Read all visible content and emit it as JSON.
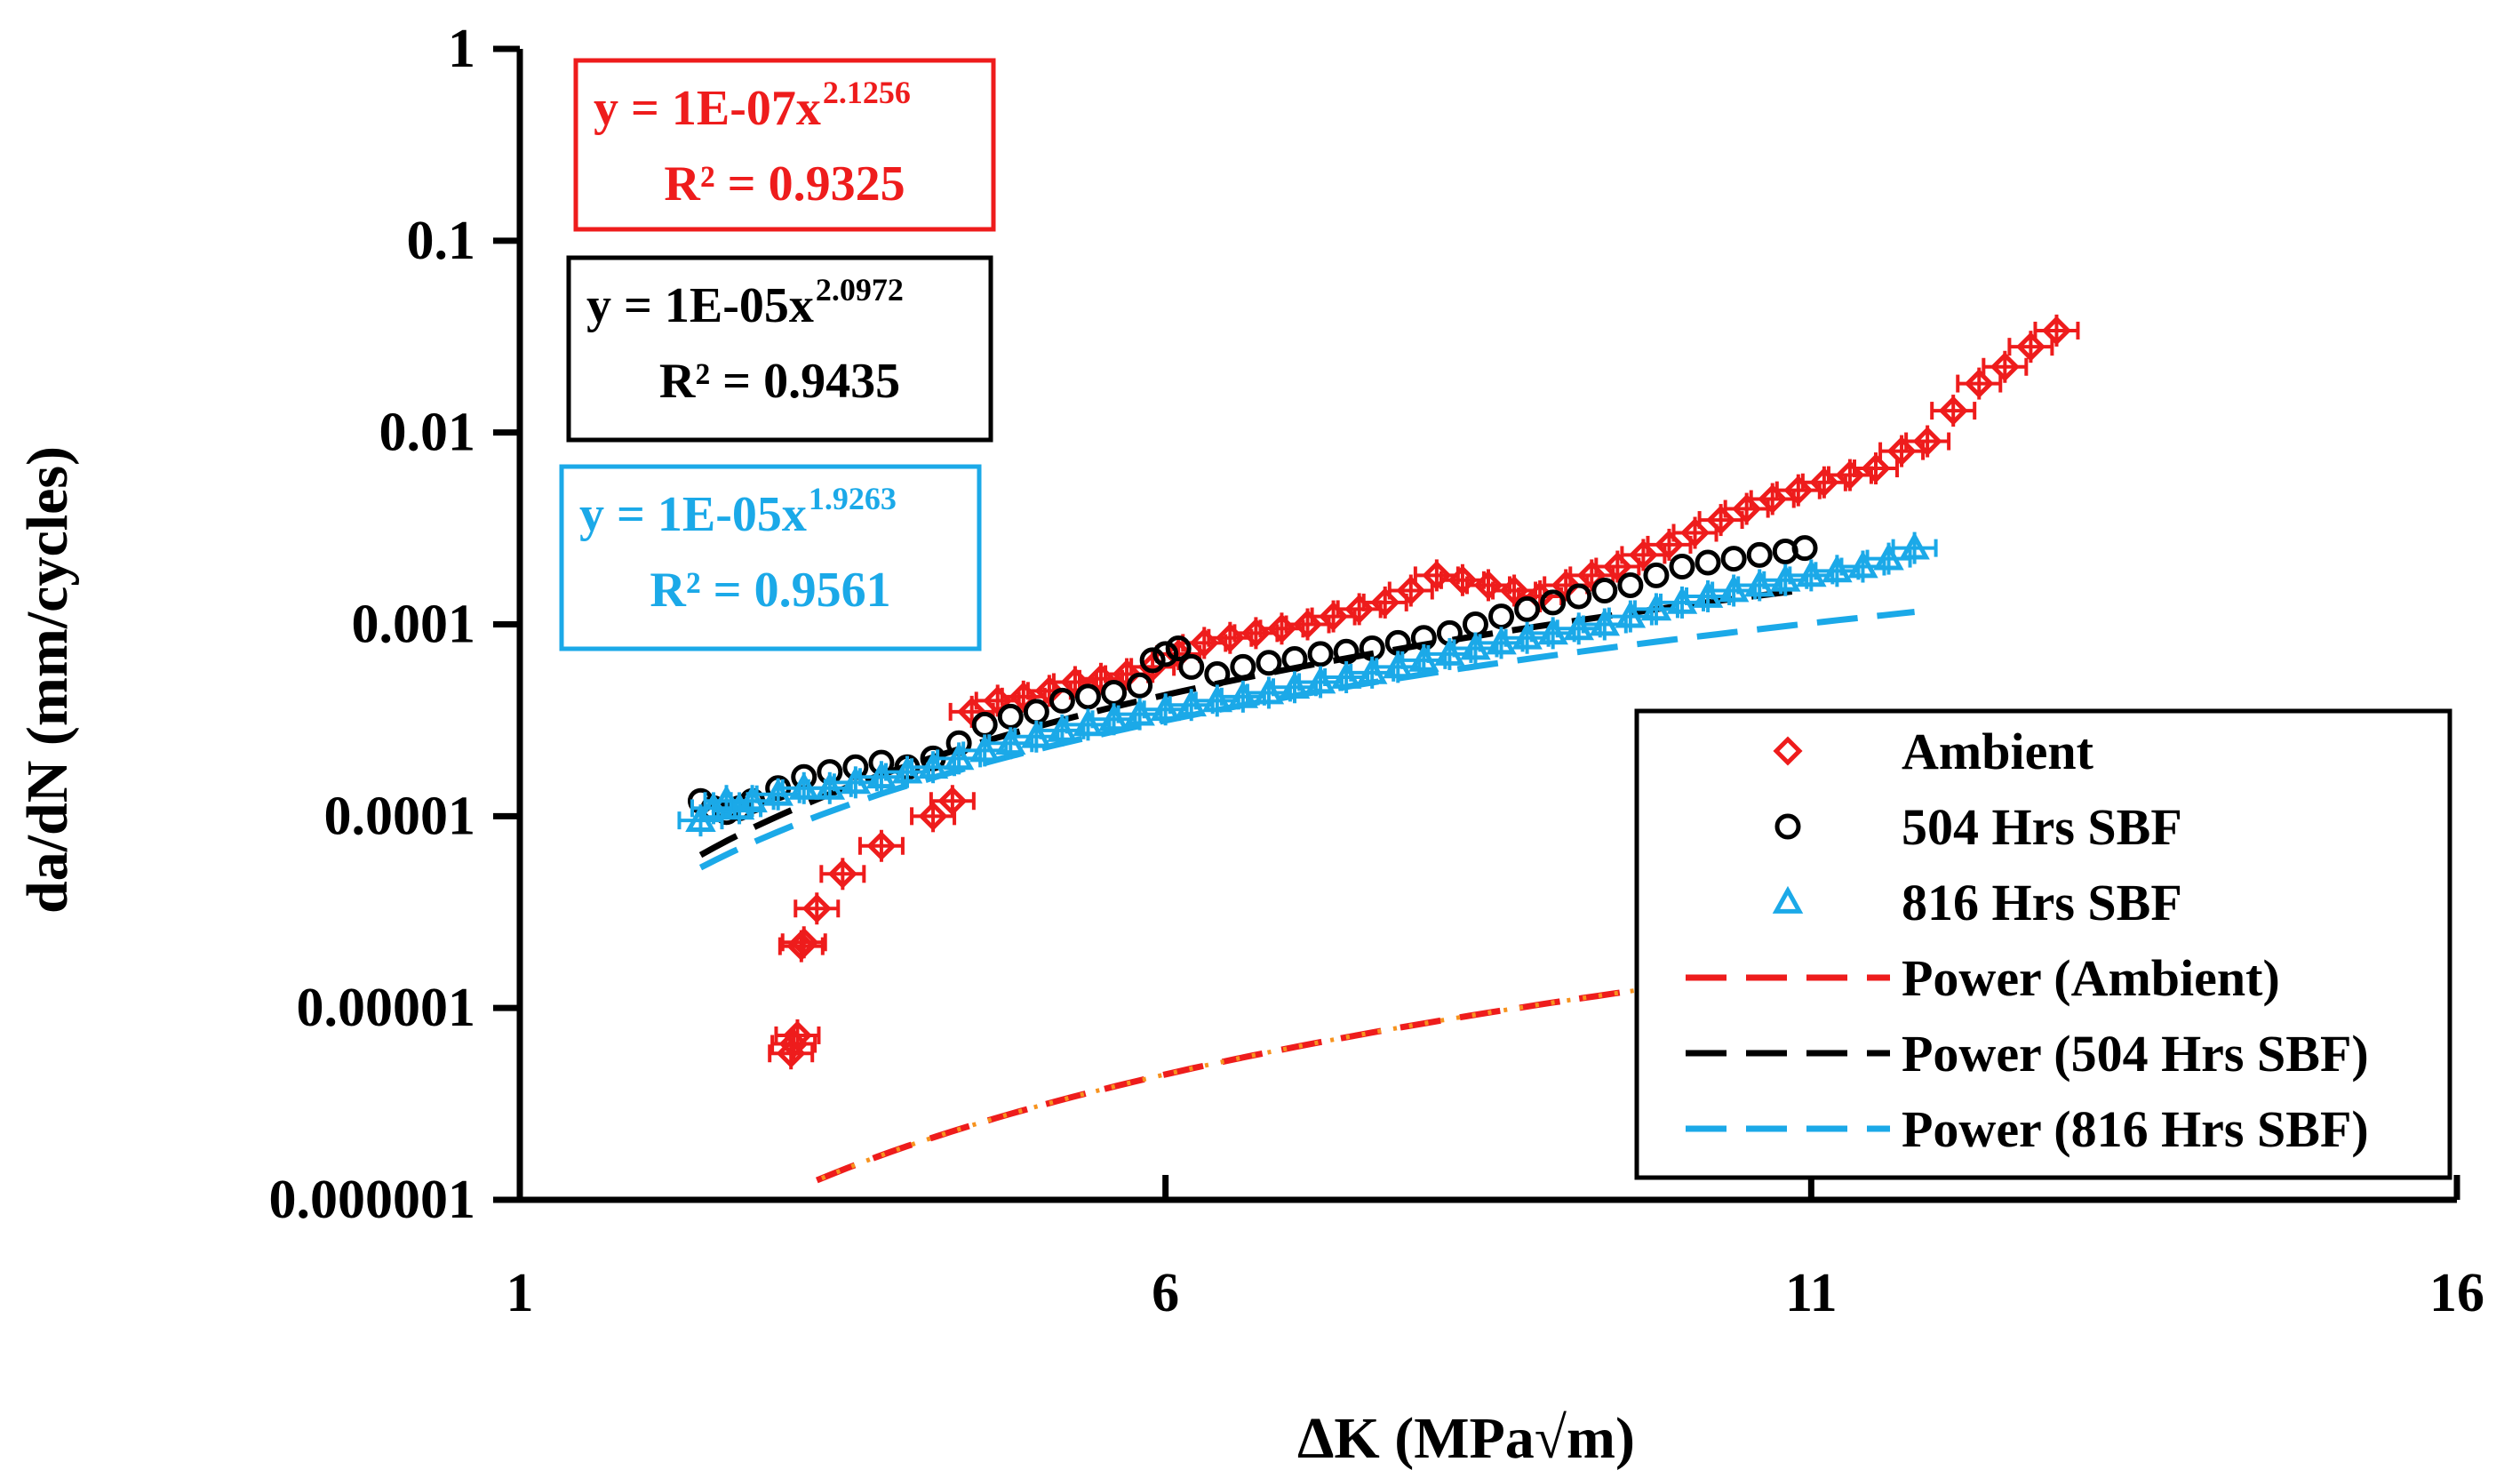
{
  "chart_data": {
    "type": "scatter",
    "xlabel": "ΔK (MPa√m)",
    "ylabel": "da/dN (mm/cycles)",
    "x_range": [
      1,
      16
    ],
    "y_range": [
      1e-06,
      1
    ],
    "y_scale": "log",
    "x_ticks": [
      {
        "value": 1,
        "label": "1"
      },
      {
        "value": 6,
        "label": "6"
      },
      {
        "value": 11,
        "label": "11"
      },
      {
        "value": 16,
        "label": "16"
      }
    ],
    "y_ticks": [
      {
        "value": 1,
        "label": "1"
      },
      {
        "value": 0.1,
        "label": "0.1"
      },
      {
        "value": 0.01,
        "label": "0.01"
      },
      {
        "value": 0.001,
        "label": "0.001"
      },
      {
        "value": 0.0001,
        "label": "0.0001"
      },
      {
        "value": 1e-05,
        "label": "0.00001"
      },
      {
        "value": 1e-06,
        "label": "0.000001"
      }
    ],
    "grid": false,
    "legend_position": "bottom-right",
    "colors": {
      "ambient": "#ee1c1c",
      "sbf504": "#000000",
      "sbf816": "#1ba9e8",
      "orange": "#f7931e"
    },
    "series": [
      {
        "name": "Ambient",
        "marker": "diamond",
        "color": "#ee1c1c",
        "x": [
          3.1,
          3.12,
          3.15,
          3.18,
          3.2,
          3.3,
          3.5,
          3.8,
          4.2,
          4.35,
          4.5,
          4.7,
          4.9,
          5.1,
          5.3,
          5.5,
          5.7,
          5.9,
          6.1,
          6.3,
          6.5,
          6.7,
          6.9,
          7.1,
          7.3,
          7.5,
          7.7,
          7.9,
          8.1,
          8.3,
          8.5,
          8.7,
          8.9,
          9.1,
          9.3,
          9.5,
          9.7,
          9.9,
          10.1,
          10.3,
          10.5,
          10.7,
          10.9,
          11.1,
          11.3,
          11.5,
          11.7,
          11.9,
          12.1,
          12.3,
          12.5,
          12.7,
          12.9
        ],
        "y": [
          5.8e-06,
          6.5e-06,
          7.2e-06,
          2.1e-05,
          2.2e-05,
          3.3e-05,
          5e-05,
          7e-05,
          0.0001,
          0.00012,
          0.00035,
          0.0004,
          0.00042,
          0.00045,
          0.0005,
          0.00052,
          0.00055,
          0.0006,
          0.0007,
          0.0008,
          0.00085,
          0.0009,
          0.00095,
          0.001,
          0.0011,
          0.0012,
          0.0013,
          0.0015,
          0.0018,
          0.0017,
          0.0016,
          0.0015,
          0.0014,
          0.0016,
          0.0018,
          0.002,
          0.0023,
          0.0026,
          0.003,
          0.0035,
          0.004,
          0.0045,
          0.005,
          0.0055,
          0.006,
          0.0065,
          0.008,
          0.009,
          0.013,
          0.018,
          0.022,
          0.028,
          0.034
        ]
      },
      {
        "name": "504 Hrs SBF",
        "marker": "circle",
        "color": "#000000",
        "x": [
          2.4,
          2.5,
          2.6,
          2.7,
          2.8,
          3.0,
          3.2,
          3.4,
          3.6,
          3.8,
          4.0,
          4.2,
          4.4,
          4.6,
          4.8,
          5.0,
          5.2,
          5.4,
          5.6,
          5.8,
          5.9,
          6.0,
          6.1,
          6.2,
          6.4,
          6.6,
          6.8,
          7.0,
          7.2,
          7.4,
          7.6,
          7.8,
          8.0,
          8.2,
          8.4,
          8.6,
          8.8,
          9.0,
          9.2,
          9.4,
          9.6,
          9.8,
          10.0,
          10.2,
          10.4,
          10.6,
          10.8,
          10.95
        ],
        "y": [
          0.00012,
          0.00011,
          0.000105,
          0.00011,
          0.00012,
          0.00014,
          0.00016,
          0.00017,
          0.00018,
          0.00019,
          0.00018,
          0.0002,
          0.00024,
          0.0003,
          0.00033,
          0.00035,
          0.0004,
          0.00042,
          0.00044,
          0.00048,
          0.00065,
          0.0007,
          0.00075,
          0.0006,
          0.00055,
          0.0006,
          0.00063,
          0.00066,
          0.0007,
          0.00072,
          0.00075,
          0.0008,
          0.00085,
          0.0009,
          0.001,
          0.0011,
          0.0012,
          0.0013,
          0.0014,
          0.0015,
          0.0016,
          0.0018,
          0.002,
          0.0021,
          0.0022,
          0.0023,
          0.0024,
          0.0025
        ]
      },
      {
        "name": "816 Hrs SBF",
        "marker": "triangle",
        "color": "#1ba9e8",
        "x": [
          2.4,
          2.5,
          2.6,
          2.7,
          2.8,
          3.0,
          3.2,
          3.4,
          3.6,
          3.8,
          4.0,
          4.2,
          4.4,
          4.6,
          4.8,
          5.0,
          5.2,
          5.4,
          5.6,
          5.8,
          6.0,
          6.2,
          6.4,
          6.6,
          6.8,
          7.0,
          7.2,
          7.4,
          7.6,
          7.8,
          8.0,
          8.2,
          8.4,
          8.6,
          8.8,
          9.0,
          9.2,
          9.4,
          9.6,
          9.8,
          10.0,
          10.2,
          10.4,
          10.6,
          10.8,
          11.0,
          11.2,
          11.4,
          11.6,
          11.8
        ],
        "y": [
          9.5e-05,
          0.00011,
          0.00012,
          0.00011,
          0.00012,
          0.00013,
          0.00014,
          0.00014,
          0.00015,
          0.00016,
          0.00017,
          0.00018,
          0.0002,
          0.00022,
          0.00024,
          0.00026,
          0.00028,
          0.0003,
          0.00032,
          0.00034,
          0.00036,
          0.00038,
          0.0004,
          0.00042,
          0.00044,
          0.00047,
          0.0005,
          0.00053,
          0.00056,
          0.0006,
          0.00065,
          0.0007,
          0.00075,
          0.0008,
          0.00085,
          0.0009,
          0.00095,
          0.001,
          0.0011,
          0.0012,
          0.0013,
          0.0014,
          0.0015,
          0.0016,
          0.0017,
          0.0018,
          0.0019,
          0.002,
          0.0022,
          0.0025
        ]
      }
    ],
    "trendlines": [
      {
        "name": "Power (Ambient)",
        "color": "#ee1c1c",
        "dash": "dashed",
        "coef": 1e-07,
        "exp": 2.1256,
        "x_range": [
          3.3,
          12.6
        ]
      },
      {
        "name": "Power (504 Hrs SBF)",
        "color": "#000000",
        "dash": "dashed",
        "coef": 1e-05,
        "exp": 2.0972,
        "x_range": [
          2.4,
          10.9
        ]
      },
      {
        "name": "Power (816 Hrs SBF)",
        "color": "#1ba9e8",
        "dash": "dashed",
        "coef": 1e-05,
        "exp": 1.9263,
        "x_range": [
          2.4,
          11.8
        ]
      }
    ],
    "equations": [
      {
        "text": "y = 1E-07x",
        "exponent": "2.1256",
        "r2": "R² = 0.9325",
        "color": "#ee1c1c"
      },
      {
        "text": "y = 1E-05x",
        "exponent": "2.0972",
        "r2": "R² = 0.9435",
        "color": "#000000"
      },
      {
        "text": "y = 1E-05x",
        "exponent": "1.9263",
        "r2": "R² = 0.9561",
        "color": "#1ba9e8"
      }
    ],
    "legend": [
      {
        "label": "Ambient",
        "kind": "marker",
        "marker": "diamond",
        "color": "#ee1c1c"
      },
      {
        "label": "504 Hrs SBF",
        "kind": "marker",
        "marker": "circle",
        "color": "#000000"
      },
      {
        "label": "816 Hrs SBF",
        "kind": "marker",
        "marker": "triangle",
        "color": "#1ba9e8"
      },
      {
        "label": "Power (Ambient)",
        "kind": "line",
        "color": "#ee1c1c"
      },
      {
        "label": "Power (504 Hrs SBF)",
        "kind": "line",
        "color": "#000000"
      },
      {
        "label": "Power (816 Hrs SBF)",
        "kind": "line",
        "color": "#1ba9e8"
      }
    ]
  }
}
